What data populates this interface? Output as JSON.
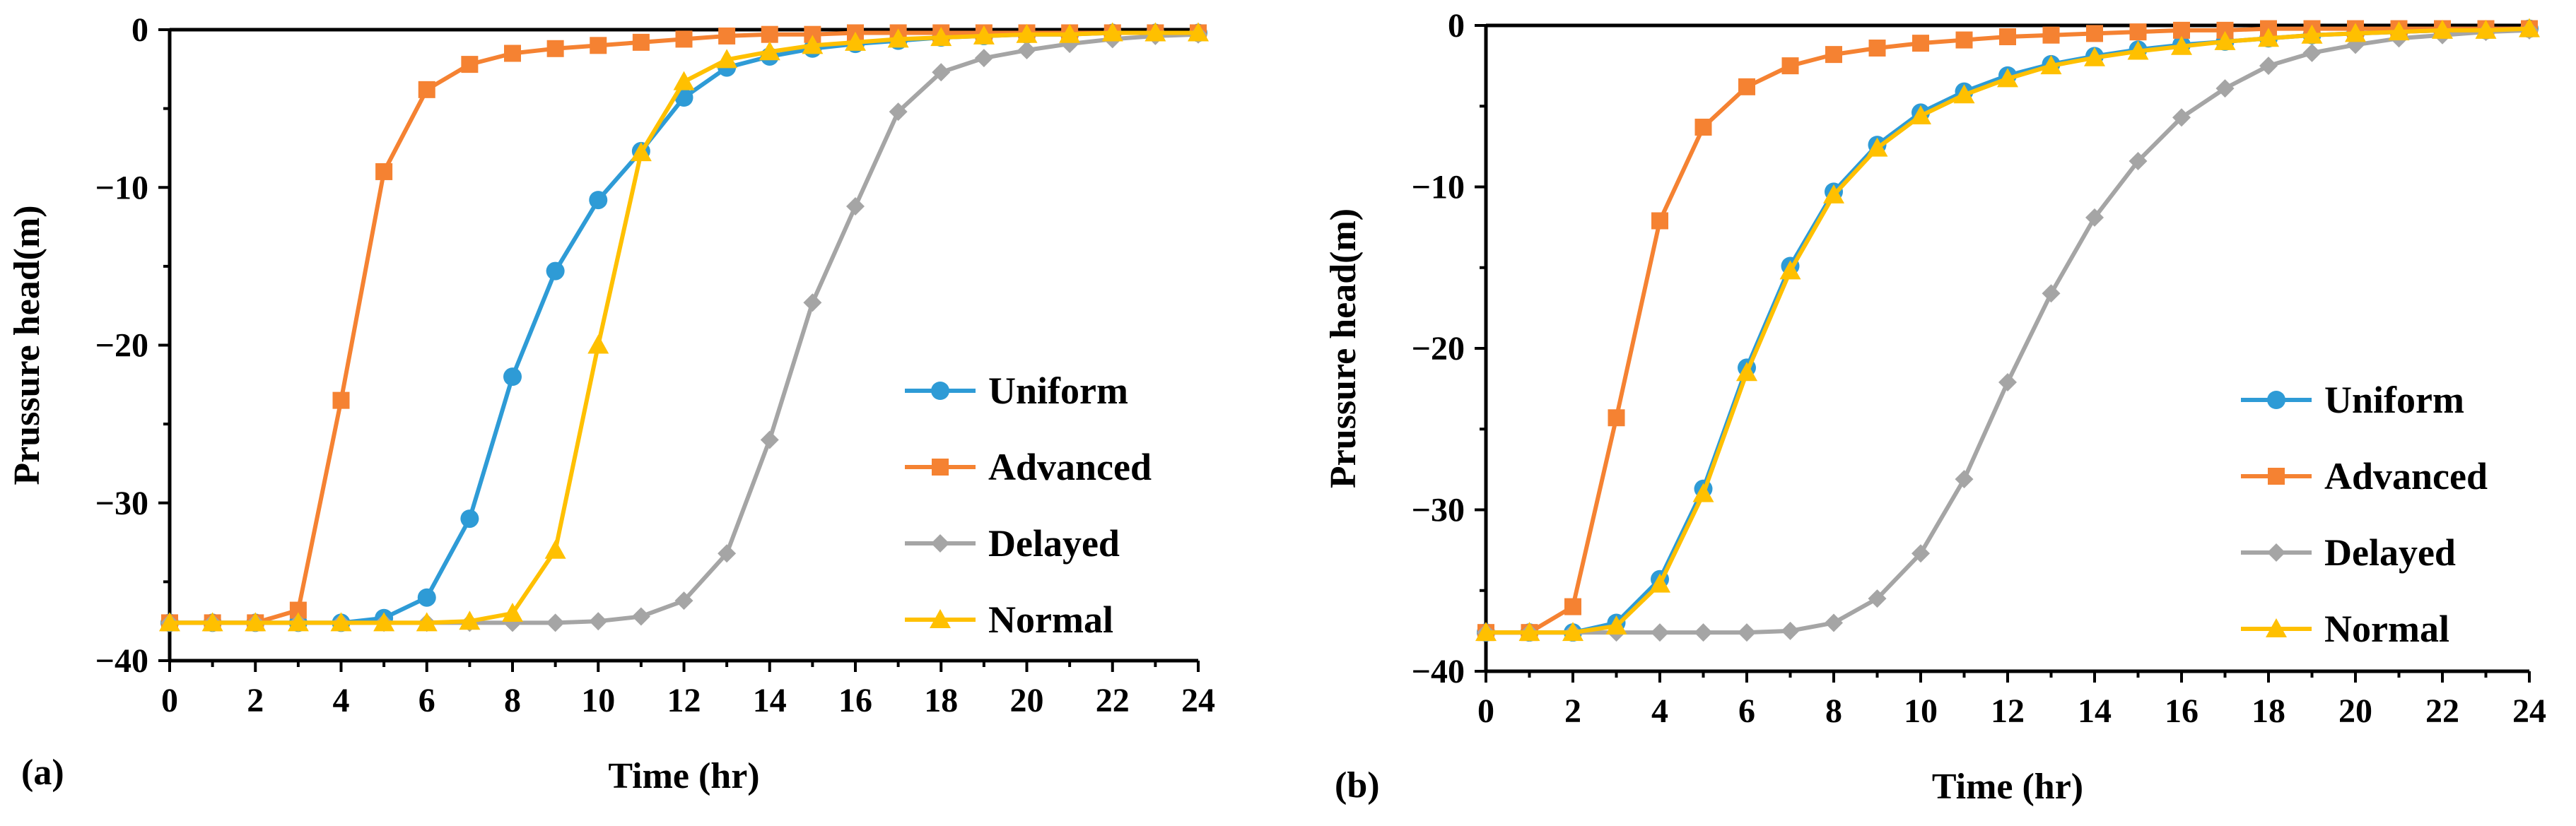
{
  "chart_data": [
    {
      "type": "line",
      "panel_label": "(a)",
      "xlabel": "Time (hr)",
      "ylabel": "Prussure head(m)",
      "xlim": [
        0,
        24
      ],
      "ylim": [
        -40,
        0
      ],
      "xticks": [
        0,
        2,
        4,
        6,
        8,
        10,
        12,
        14,
        16,
        18,
        20,
        22,
        24
      ],
      "yticks": [
        0,
        -10,
        -20,
        -30,
        -40
      ],
      "x": [
        0,
        1,
        2,
        3,
        4,
        5,
        6,
        7,
        8,
        9,
        10,
        11,
        12,
        13,
        14,
        15,
        16,
        17,
        18,
        19,
        20,
        21,
        22,
        23,
        24
      ],
      "legend_position": "lower-right",
      "series": [
        {
          "name": "Uniform",
          "color": "#2E9BD6",
          "marker": "circle",
          "values": [
            -37.6,
            -37.6,
            -37.6,
            -37.6,
            -37.6,
            -37.3,
            -36,
            -31,
            -22,
            -15.3,
            -10.8,
            -7.7,
            -4.3,
            -2.4,
            -1.7,
            -1.2,
            -0.9,
            -0.7,
            -0.5,
            -0.4,
            -0.3,
            -0.3,
            -0.2,
            -0.2,
            -0.2
          ]
        },
        {
          "name": "Advanced",
          "color": "#F58232",
          "marker": "square",
          "values": [
            -37.6,
            -37.6,
            -37.6,
            -36.8,
            -23.5,
            -9,
            -3.8,
            -2.2,
            -1.5,
            -1.2,
            -1.0,
            -0.8,
            -0.6,
            -0.4,
            -0.3,
            -0.3,
            -0.2,
            -0.2,
            -0.2,
            -0.2,
            -0.2,
            -0.2,
            -0.2,
            -0.2,
            -0.2
          ]
        },
        {
          "name": "Delayed",
          "color": "#A5A5A5",
          "marker": "diamond",
          "values": [
            -37.6,
            -37.6,
            -37.6,
            -37.6,
            -37.6,
            -37.6,
            -37.6,
            -37.6,
            -37.6,
            -37.6,
            -37.5,
            -37.2,
            -36.2,
            -33.2,
            -26,
            -17.3,
            -11.2,
            -5.2,
            -2.7,
            -1.8,
            -1.3,
            -0.9,
            -0.6,
            -0.4,
            -0.3
          ]
        },
        {
          "name": "Normal",
          "color": "#FFC000",
          "marker": "triangle",
          "values": [
            -37.6,
            -37.6,
            -37.6,
            -37.6,
            -37.6,
            -37.6,
            -37.6,
            -37.5,
            -37,
            -33,
            -20,
            -7.8,
            -3.3,
            -1.9,
            -1.4,
            -1.0,
            -0.8,
            -0.6,
            -0.5,
            -0.4,
            -0.3,
            -0.3,
            -0.2,
            -0.2,
            -0.2
          ]
        }
      ]
    },
    {
      "type": "line",
      "panel_label": "(b)",
      "xlabel": "Time (hr)",
      "ylabel": "Prussure head(m)",
      "xlim": [
        0,
        24
      ],
      "ylim": [
        -40,
        0
      ],
      "xticks": [
        0,
        2,
        4,
        6,
        8,
        10,
        12,
        14,
        16,
        18,
        20,
        22,
        24
      ],
      "yticks": [
        0,
        -10,
        -20,
        -30,
        -40
      ],
      "x": [
        0,
        1,
        2,
        3,
        4,
        5,
        6,
        7,
        8,
        9,
        10,
        11,
        12,
        13,
        14,
        15,
        16,
        17,
        18,
        19,
        20,
        21,
        22,
        23,
        24
      ],
      "legend_position": "lower-right",
      "series": [
        {
          "name": "Uniform",
          "color": "#2E9BD6",
          "marker": "circle",
          "values": [
            -37.6,
            -37.6,
            -37.6,
            -37,
            -34.3,
            -28.7,
            -21.2,
            -14.9,
            -10.3,
            -7.4,
            -5.4,
            -4.1,
            -3.1,
            -2.4,
            -1.9,
            -1.5,
            -1.2,
            -1.0,
            -0.8,
            -0.6,
            -0.5,
            -0.4,
            -0.3,
            -0.3,
            -0.2
          ]
        },
        {
          "name": "Advanced",
          "color": "#F58232",
          "marker": "square",
          "values": [
            -37.6,
            -37.6,
            -36,
            -24.3,
            -12.1,
            -6.3,
            -3.8,
            -2.5,
            -1.8,
            -1.4,
            -1.1,
            -0.9,
            -0.7,
            -0.6,
            -0.5,
            -0.4,
            -0.3,
            -0.3,
            -0.2,
            -0.2,
            -0.2,
            -0.2,
            -0.2,
            -0.2,
            -0.2
          ]
        },
        {
          "name": "Delayed",
          "color": "#A5A5A5",
          "marker": "diamond",
          "values": [
            -37.6,
            -37.6,
            -37.6,
            -37.6,
            -37.6,
            -37.6,
            -37.6,
            -37.5,
            -37,
            -35.5,
            -32.7,
            -28.1,
            -22.1,
            -16.6,
            -11.9,
            -8.4,
            -5.7,
            -3.9,
            -2.5,
            -1.7,
            -1.2,
            -0.8,
            -0.6,
            -0.4,
            -0.3
          ]
        },
        {
          "name": "Normal",
          "color": "#FFC000",
          "marker": "triangle",
          "values": [
            -37.6,
            -37.6,
            -37.6,
            -37.2,
            -34.6,
            -29,
            -21.5,
            -15.2,
            -10.5,
            -7.6,
            -5.6,
            -4.3,
            -3.3,
            -2.5,
            -2.0,
            -1.6,
            -1.3,
            -1.0,
            -0.8,
            -0.6,
            -0.5,
            -0.4,
            -0.3,
            -0.3,
            -0.2
          ]
        }
      ]
    }
  ]
}
